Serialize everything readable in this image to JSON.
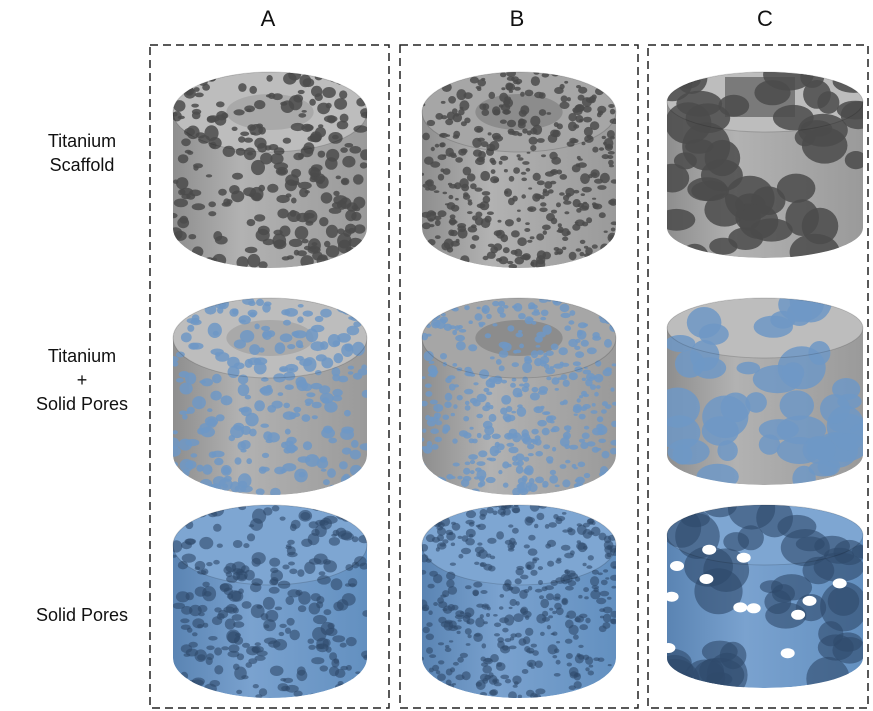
{
  "figure": {
    "columns": [
      "A",
      "B",
      "C"
    ],
    "rows": [
      {
        "label_lines": [
          "Titanium",
          "Scaffold"
        ]
      },
      {
        "label_lines": [
          "Titanium",
          "+",
          "Solid Pores"
        ]
      },
      {
        "label_lines": [
          "Solid Pores"
        ]
      }
    ]
  }
}
